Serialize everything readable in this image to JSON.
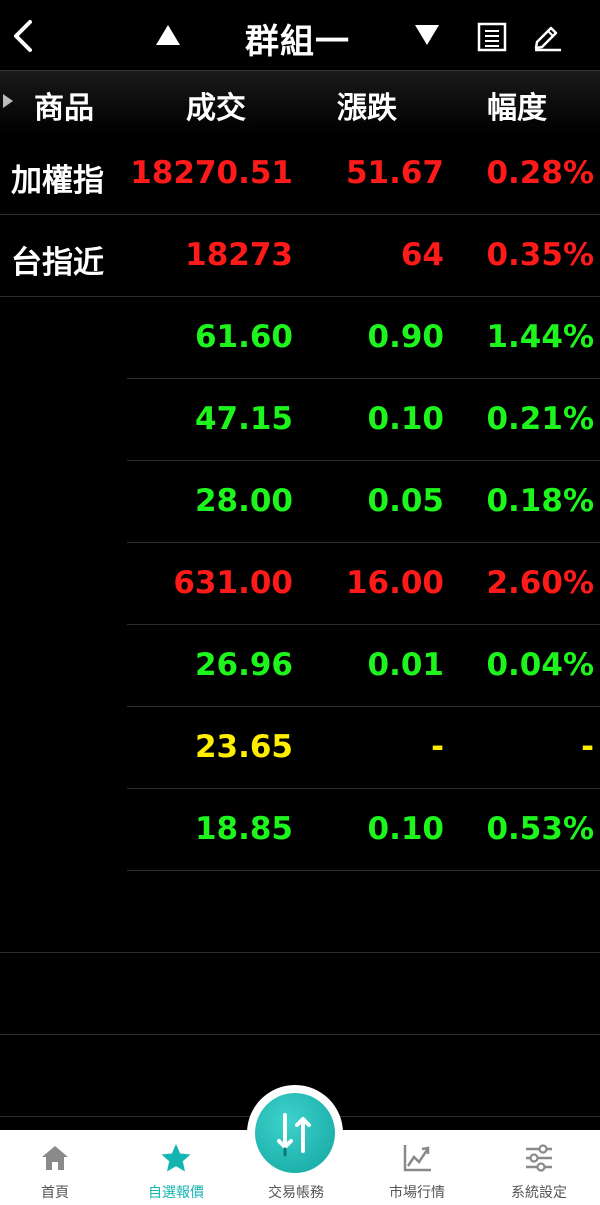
{
  "header": {
    "title": "群組一",
    "columns": [
      "商品",
      "成交",
      "漲跌",
      "幅度"
    ]
  },
  "colors": {
    "up": "#ff1a1a",
    "down": "#1df51d",
    "flat": "#ffee00",
    "accent": "#14b5b0"
  },
  "rows": [
    {
      "name": "加權指",
      "price": "18270.51",
      "change": "51.67",
      "pct": "0.28%",
      "trend": "up"
    },
    {
      "name": "台指近",
      "price": "18273",
      "change": "64",
      "pct": "0.35%",
      "trend": "up"
    },
    {
      "name": "",
      "price": "61.60",
      "change": "0.90",
      "pct": "1.44%",
      "trend": "down"
    },
    {
      "name": "",
      "price": "47.15",
      "change": "0.10",
      "pct": "0.21%",
      "trend": "down"
    },
    {
      "name": "",
      "price": "28.00",
      "change": "0.05",
      "pct": "0.18%",
      "trend": "down"
    },
    {
      "name": "",
      "price": "631.00",
      "change": "16.00",
      "pct": "2.60%",
      "trend": "up"
    },
    {
      "name": "",
      "price": "26.96",
      "change": "0.01",
      "pct": "0.04%",
      "trend": "down"
    },
    {
      "name": "",
      "price": "23.65",
      "change": "-",
      "pct": "-",
      "trend": "flat"
    },
    {
      "name": "",
      "price": "18.85",
      "change": "0.10",
      "pct": "0.53%",
      "trend": "down"
    },
    {
      "name": "",
      "price": "",
      "change": "",
      "pct": "",
      "trend": "flat"
    },
    {
      "name": "",
      "price": "",
      "change": "",
      "pct": "",
      "trend": "flat"
    },
    {
      "name": "",
      "price": "",
      "change": "",
      "pct": "",
      "trend": "flat"
    }
  ],
  "nav": {
    "items": [
      {
        "label": "首頁",
        "icon": "home-icon",
        "active": false
      },
      {
        "label": "自選報價",
        "icon": "star-icon",
        "active": true
      },
      {
        "label": "交易帳務",
        "icon": "trade-arrows-icon",
        "active": false
      },
      {
        "label": "市場行情",
        "icon": "chart-icon",
        "active": false
      },
      {
        "label": "系統設定",
        "icon": "sliders-icon",
        "active": false
      }
    ]
  }
}
